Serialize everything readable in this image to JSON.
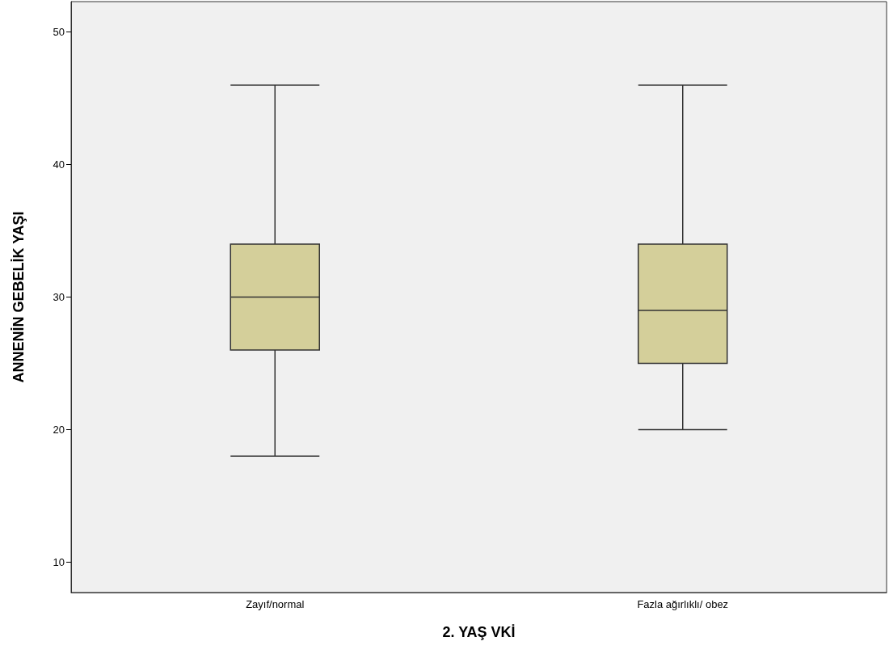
{
  "chart_data": {
    "type": "box",
    "xlabel": "2. YAŞ VKİ",
    "ylabel": "ANNENİN GEBELİK YAŞI",
    "categories": [
      "Zayıf/normal",
      "Fazla ağırlıklı/ obez"
    ],
    "series": [
      {
        "color": "#d4cf9a",
        "boxes": [
          {
            "low": 18,
            "q1": 26,
            "median": 30,
            "q3": 34,
            "high": 46
          },
          {
            "low": 20,
            "q1": 25,
            "median": 29,
            "q3": 34,
            "high": 46
          }
        ]
      }
    ],
    "ylim": [
      7.7,
      52.3
    ],
    "yticks": [
      10,
      20,
      30,
      40,
      50
    ],
    "grid": false
  }
}
